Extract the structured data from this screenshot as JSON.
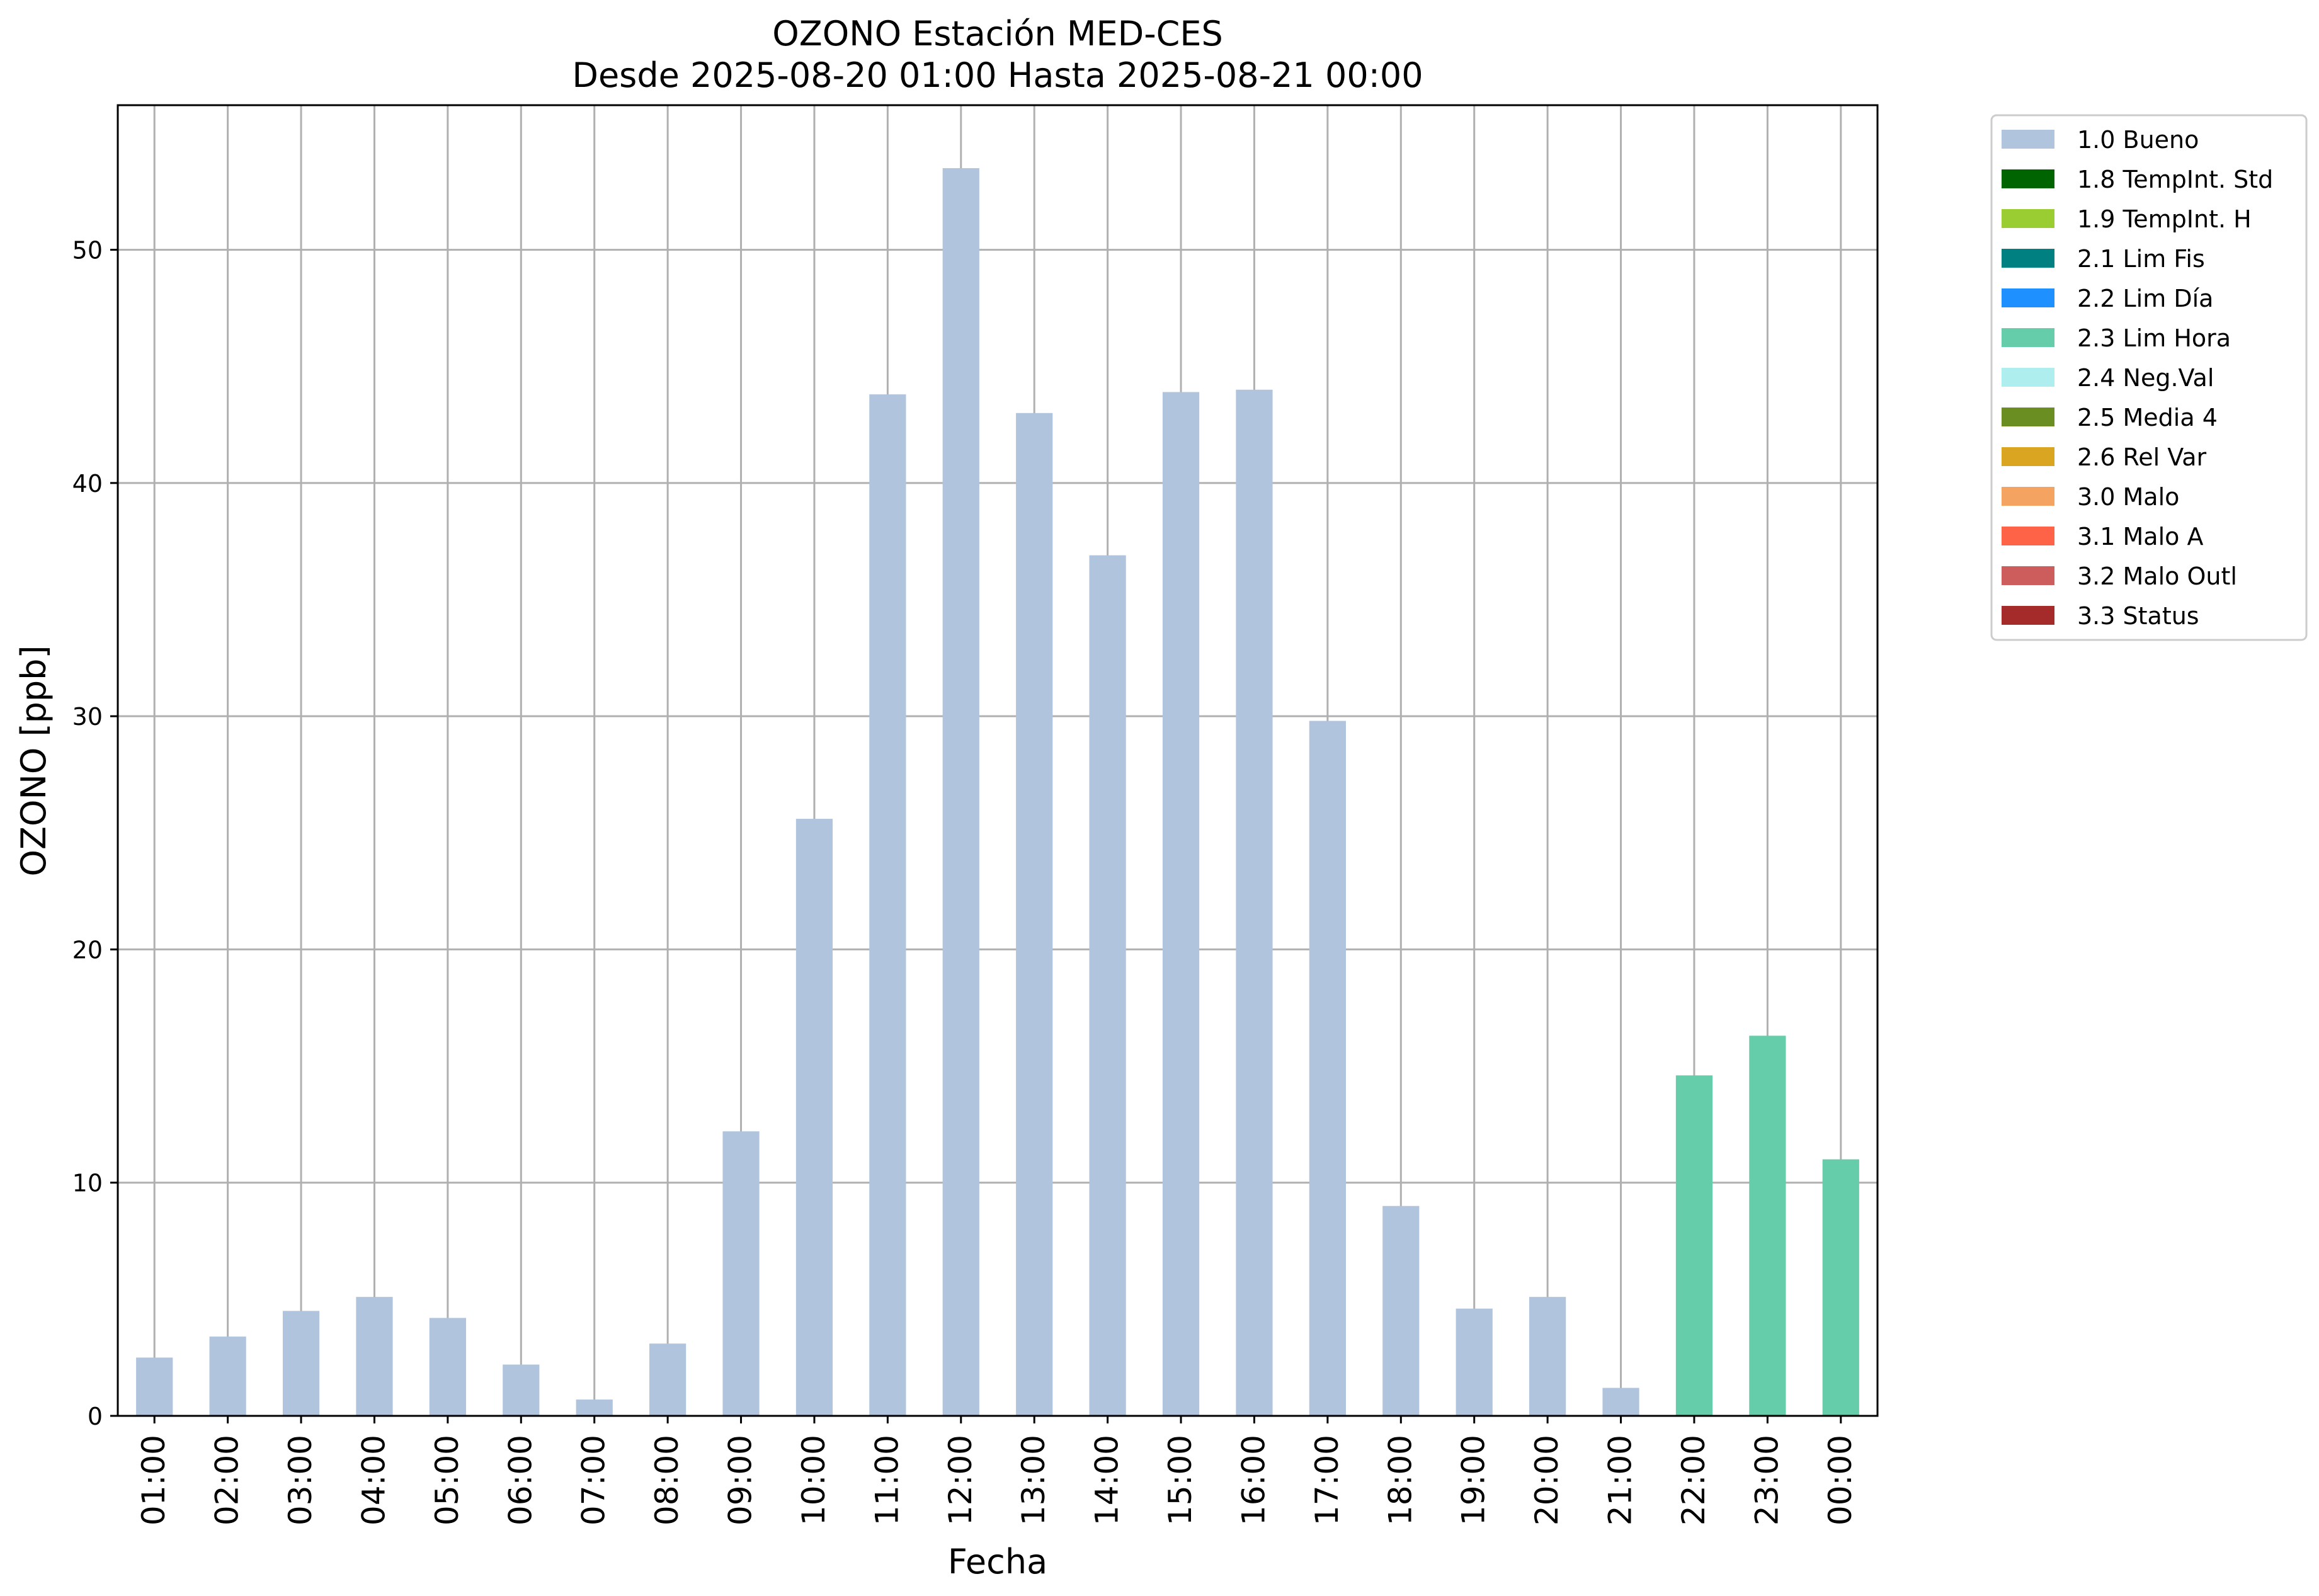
{
  "chart_data": {
    "type": "bar",
    "title": "OZONO Estación MED-CES",
    "subtitle": "Desde 2025-08-20 01:00 Hasta 2025-08-21 00:00",
    "xlabel": "Fecha",
    "ylabel": "OZONO [ppb]",
    "ylim": [
      0,
      56.2
    ],
    "yticks": [
      0,
      10,
      20,
      30,
      40,
      50
    ],
    "grid": true,
    "legend_position": "outside-top-right",
    "categories": [
      "01:00",
      "02:00",
      "03:00",
      "04:00",
      "05:00",
      "06:00",
      "07:00",
      "08:00",
      "09:00",
      "10:00",
      "11:00",
      "12:00",
      "13:00",
      "14:00",
      "15:00",
      "16:00",
      "17:00",
      "18:00",
      "19:00",
      "20:00",
      "21:00",
      "22:00",
      "23:00",
      "00:00"
    ],
    "values": [
      2.5,
      3.4,
      4.5,
      5.1,
      4.2,
      2.2,
      0.7,
      3.1,
      12.2,
      25.6,
      43.8,
      53.5,
      43.0,
      36.9,
      43.9,
      44.0,
      29.8,
      9.0,
      4.6,
      5.1,
      1.2,
      14.6,
      16.3,
      11.0
    ],
    "flags": [
      "1.0 Bueno",
      "1.0 Bueno",
      "1.0 Bueno",
      "1.0 Bueno",
      "1.0 Bueno",
      "1.0 Bueno",
      "1.0 Bueno",
      "1.0 Bueno",
      "1.0 Bueno",
      "1.0 Bueno",
      "1.0 Bueno",
      "1.0 Bueno",
      "1.0 Bueno",
      "1.0 Bueno",
      "1.0 Bueno",
      "1.0 Bueno",
      "1.0 Bueno",
      "1.0 Bueno",
      "1.0 Bueno",
      "1.0 Bueno",
      "1.0 Bueno",
      "2.3 Lim Hora",
      "2.3 Lim Hora",
      "2.3 Lim Hora"
    ],
    "legend": [
      {
        "label": "1.0 Bueno",
        "color": "#b0c4de"
      },
      {
        "label": "1.8 TempInt. Std",
        "color": "#006400"
      },
      {
        "label": "1.9 TempInt. H",
        "color": "#9acd32"
      },
      {
        "label": "2.1 Lim Fis",
        "color": "#008080"
      },
      {
        "label": "2.2 Lim Día",
        "color": "#1e90ff"
      },
      {
        "label": "2.3 Lim Hora",
        "color": "#66cdaa"
      },
      {
        "label": "2.4 Neg.Val",
        "color": "#afeeee"
      },
      {
        "label": "2.5 Media 4",
        "color": "#6b8e23"
      },
      {
        "label": "2.6 Rel Var",
        "color": "#daa520"
      },
      {
        "label": "3.0 Malo",
        "color": "#f4a460"
      },
      {
        "label": "3.1 Malo A",
        "color": "#ff6347"
      },
      {
        "label": "3.2 Malo Outl",
        "color": "#cd5c5c"
      },
      {
        "label": "3.3 Status",
        "color": "#a52a2a"
      }
    ]
  }
}
